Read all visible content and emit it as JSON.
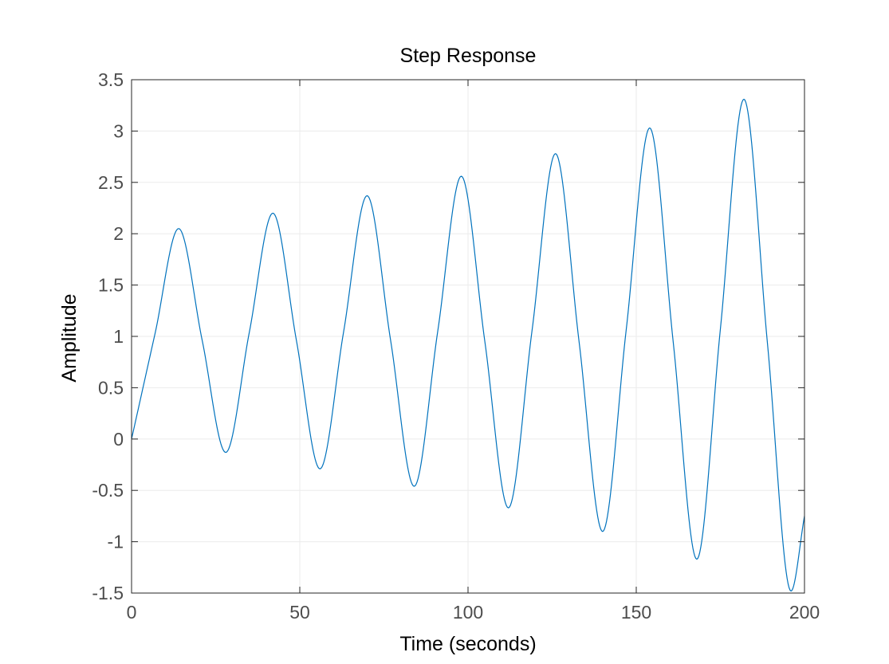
{
  "chart_data": {
    "type": "line",
    "title": "Step Response",
    "xlabel": "Time (seconds)",
    "ylabel": "Amplitude",
    "xlim": [
      0,
      200
    ],
    "ylim": [
      -1.5,
      3.5
    ],
    "xticks": [
      0,
      50,
      100,
      150,
      200
    ],
    "xtick_labels": [
      "0",
      "50",
      "100",
      "150",
      "200"
    ],
    "yticks": [
      -1.5,
      -1,
      -0.5,
      0,
      0.5,
      1,
      1.5,
      2,
      2.5,
      3,
      3.5
    ],
    "ytick_labels": [
      "-1.5",
      "-1",
      "-0.5",
      "0",
      "0.5",
      "1",
      "1.5",
      "2",
      "2.5",
      "3",
      "3.5"
    ],
    "grid": true,
    "line_color": "#0072bd",
    "series": [
      {
        "x": [
          0,
          7,
          14,
          21,
          28,
          35,
          42,
          49,
          56,
          63,
          70,
          77,
          84,
          91,
          98,
          105,
          112,
          119,
          126,
          133,
          140,
          147,
          154,
          161,
          168,
          175,
          182,
          189,
          196,
          200
        ],
        "values": [
          0,
          1.03,
          2.05,
          0.96,
          -0.13,
          1.04,
          2.2,
          0.96,
          -0.29,
          1.04,
          2.37,
          0.96,
          -0.46,
          1.05,
          2.56,
          0.95,
          -0.67,
          1.05,
          2.78,
          0.95,
          -0.9,
          1.06,
          3.03,
          0.94,
          -1.17,
          1.07,
          3.31,
          0.93,
          -1.48,
          -0.75
        ]
      }
    ]
  }
}
